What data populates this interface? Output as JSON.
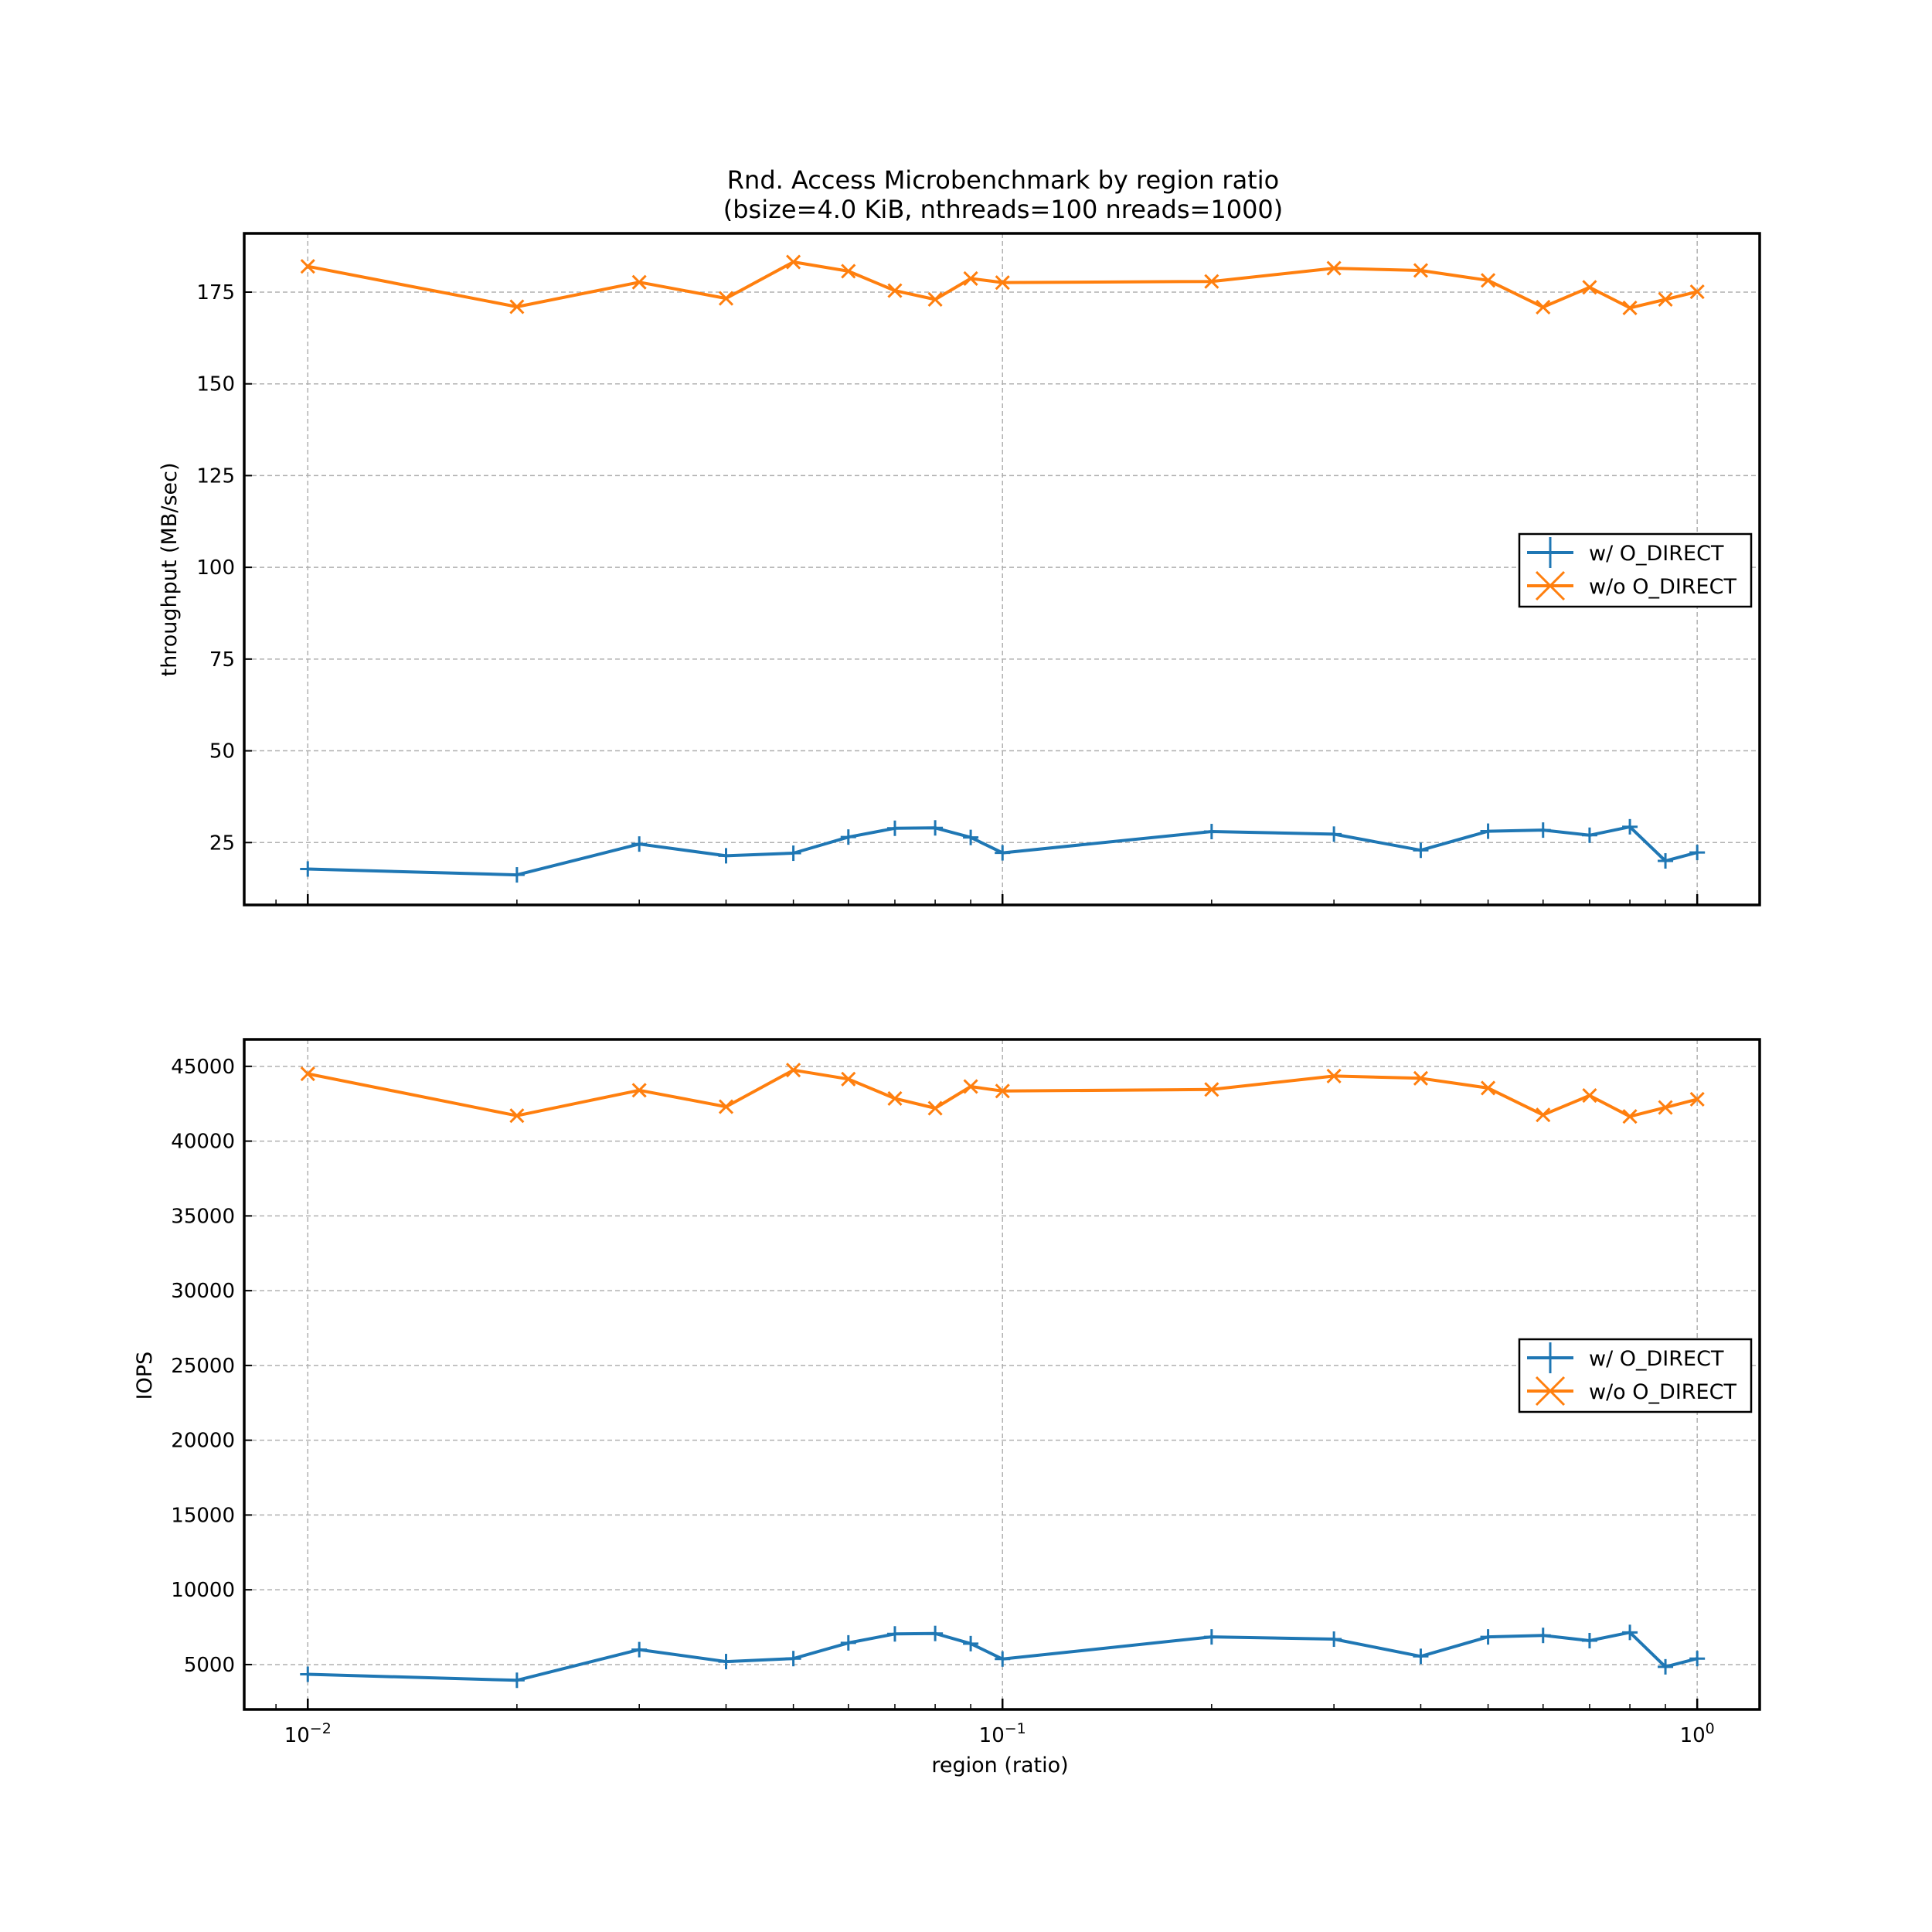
{
  "figure": {
    "title_line1": "Rnd. Access Microbenchmark by region ratio",
    "title_line2": "(bsize=4.0 KiB, nthreads=100 nreads=1000)"
  },
  "colors": {
    "with_direct": "#1f77b4",
    "without_direct": "#ff7f0e",
    "grid": "#b0b0b0",
    "axes": "#000000"
  },
  "chart_data": [
    {
      "type": "line",
      "title": "Rnd. Access Microbenchmark by region ratio (bsize=4.0 KiB, nthreads=100 nreads=1000)",
      "xlabel": "",
      "ylabel": "throughput (MB/sec)",
      "xscale": "log",
      "xlim": [
        0.0081,
        1.23
      ],
      "ylim": [
        8,
        191
      ],
      "yticks": [
        25,
        50,
        75,
        100,
        125,
        150,
        175
      ],
      "grid": true,
      "legend": "center-right",
      "x": [
        0.01,
        0.02,
        0.03,
        0.04,
        0.05,
        0.06,
        0.07,
        0.08,
        0.09,
        0.1,
        0.2,
        0.3,
        0.4,
        0.5,
        0.6,
        0.7,
        0.8,
        0.9,
        1.0
      ],
      "series": [
        {
          "name": "w/ O_DIRECT",
          "marker": "plus",
          "values": [
            17.8,
            16.2,
            24.6,
            21.4,
            22.1,
            26.5,
            28.9,
            29.0,
            26.4,
            22.2,
            28.0,
            27.3,
            22.9,
            28.1,
            28.4,
            27.0,
            29.3,
            20.0,
            22.3
          ]
        },
        {
          "name": "w/o O_DIRECT",
          "marker": "x",
          "values": [
            182.0,
            171.0,
            177.7,
            173.3,
            183.2,
            180.7,
            175.4,
            173.0,
            178.7,
            177.6,
            177.9,
            181.5,
            180.9,
            178.2,
            170.9,
            176.3,
            170.7,
            173.0,
            175.1
          ]
        }
      ]
    },
    {
      "type": "line",
      "xlabel": "region (ratio)",
      "ylabel": "IOPS",
      "xscale": "log",
      "xlim": [
        0.0081,
        1.23
      ],
      "xticks": [
        "10^-2",
        "10^-1",
        "10^0"
      ],
      "ylim": [
        2000,
        46800
      ],
      "yticks": [
        5000,
        10000,
        15000,
        20000,
        25000,
        30000,
        35000,
        40000,
        45000
      ],
      "grid": true,
      "legend": "center-right",
      "x": [
        0.01,
        0.02,
        0.03,
        0.04,
        0.05,
        0.06,
        0.07,
        0.08,
        0.09,
        0.1,
        0.2,
        0.3,
        0.4,
        0.5,
        0.6,
        0.7,
        0.8,
        0.9,
        1.0
      ],
      "series": [
        {
          "name": "w/ O_DIRECT",
          "marker": "plus",
          "values": [
            4350,
            3950,
            6000,
            5200,
            5400,
            6450,
            7050,
            7080,
            6400,
            5370,
            6850,
            6700,
            5550,
            6850,
            6950,
            6600,
            7150,
            4850,
            5400
          ]
        },
        {
          "name": "w/o O_DIRECT",
          "marker": "x",
          "values": [
            44500,
            41700,
            43400,
            42300,
            44750,
            44150,
            42850,
            42200,
            43650,
            43350,
            43450,
            44350,
            44200,
            43550,
            41750,
            43050,
            41650,
            42250,
            42800
          ]
        }
      ]
    }
  ]
}
